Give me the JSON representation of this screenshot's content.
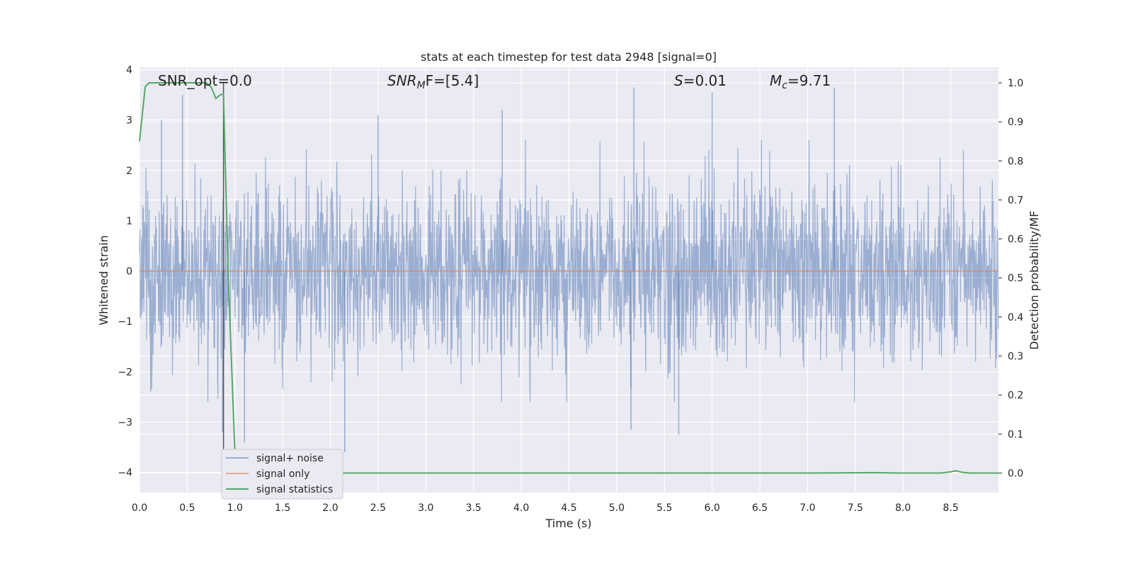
{
  "chart_data": {
    "type": "line",
    "title": "stats at each timestep for test data 2948 [signal=0]",
    "xlabel": "Time (s)",
    "ylabel_left": "Whitened strain",
    "ylabel_right": "Detection probability/MF",
    "xlim": [
      0,
      9
    ],
    "ylim_left": [
      -4.4,
      4.05
    ],
    "ylim_right": [
      -0.05,
      1.04
    ],
    "x_ticks": [
      "0.0",
      "0.5",
      "1.0",
      "1.5",
      "2.0",
      "2.5",
      "3.0",
      "3.5",
      "4.0",
      "4.5",
      "5.0",
      "5.5",
      "6.0",
      "6.5",
      "7.0",
      "7.5",
      "8.0",
      "8.5"
    ],
    "y_left_ticks": [
      "−4",
      "−3",
      "−2",
      "−1",
      "0",
      "1",
      "2",
      "3",
      "4"
    ],
    "y_right_ticks": [
      "0.0",
      "0.1",
      "0.2",
      "0.3",
      "0.4",
      "0.5",
      "0.6",
      "0.7",
      "0.8",
      "0.9",
      "1.0"
    ],
    "grid": true,
    "legend_position": "lower-left",
    "annotations": {
      "snr_opt": "SNR_opt=0.0",
      "snr_mf_main": "SNR",
      "snr_mf_sub": "M",
      "snr_mf_rest": "F=[5.4]",
      "s_main": "S",
      "s_rest": "=0.01",
      "mc_main": "M",
      "mc_sub": "c",
      "mc_rest": "=9.71"
    },
    "vline_x": 0.88,
    "series": [
      {
        "name": "signal+ noise",
        "axis": "left",
        "color": "#4c72b0",
        "description_level": "noise band",
        "upper_envelope_approx": [
          1.7,
          2.3,
          1.9,
          2.0,
          2.1,
          1.8,
          2.4,
          2.2,
          2.0,
          2.6,
          1.9,
          2.3,
          2.1,
          2.7,
          2.2,
          2.0,
          2.4,
          2.3,
          2.1,
          2.5,
          2.2,
          2.0,
          2.3,
          2.1,
          2.4,
          2.2,
          2.0,
          2.3
        ],
        "spikes": [
          {
            "x": 0.45,
            "y": 3.5
          },
          {
            "x": 0.23,
            "y": 3.0
          },
          {
            "x": 0.87,
            "y": -3.2
          },
          {
            "x": 1.1,
            "y": -3.4
          },
          {
            "x": 2.15,
            "y": -3.6
          },
          {
            "x": 2.5,
            "y": 3.1
          },
          {
            "x": 5.15,
            "y": -3.15
          },
          {
            "x": 5.18,
            "y": 3.65
          },
          {
            "x": 5.65,
            "y": -3.25
          },
          {
            "x": 6.0,
            "y": 3.55
          },
          {
            "x": 7.28,
            "y": 3.65
          },
          {
            "x": 3.8,
            "y": 3.2
          }
        ]
      },
      {
        "name": "signal only",
        "axis": "left",
        "color": "#dd8452",
        "x": [
          0,
          9
        ],
        "y": [
          0,
          0
        ]
      },
      {
        "name": "signal statistics",
        "axis": "right",
        "color": "#55a868",
        "x": [
          0,
          0.03,
          0.06,
          0.1,
          0.15,
          0.2,
          0.3,
          0.4,
          0.5,
          0.6,
          0.7,
          0.75,
          0.8,
          0.85,
          0.88,
          0.93,
          1.0,
          1.05,
          1.5,
          2.0,
          3.0,
          4.0,
          5.0,
          6.0,
          7.0,
          7.7,
          8.0,
          8.4,
          8.5,
          8.55,
          8.62,
          8.7,
          9.0
        ],
        "y": [
          0.85,
          0.92,
          0.99,
          1.0,
          1.0,
          1.0,
          1.0,
          1.0,
          1.0,
          1.0,
          1.0,
          0.99,
          0.96,
          0.97,
          0.97,
          0.5,
          0.05,
          0.0,
          0.0,
          0.0,
          0.0,
          0.0,
          0.0,
          0.0,
          0.0,
          0.001,
          0.0,
          0.0,
          0.003,
          0.006,
          0.002,
          0.0,
          0.0
        ]
      }
    ],
    "colors": {
      "background": "#eaeaf2",
      "grid": "#ffffff",
      "text": "#262626",
      "vline": "#555555"
    }
  }
}
